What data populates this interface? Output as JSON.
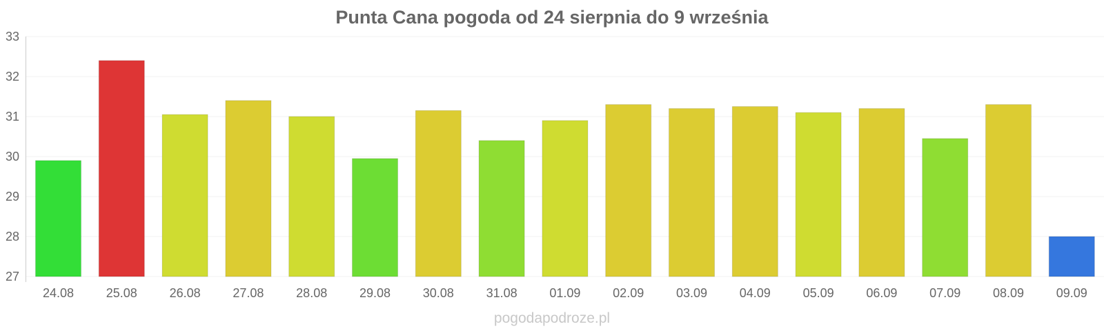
{
  "title": "Punta Cana pogoda od 24 sierpnia do 9 września",
  "footer": "pogodapodroze.pl",
  "chart_data": {
    "type": "bar",
    "title": "Punta Cana pogoda od 24 sierpnia do 9 września",
    "xlabel": "",
    "ylabel": "",
    "ylim": [
      27,
      33
    ],
    "yticks": [
      27,
      28,
      29,
      30,
      31,
      32,
      33
    ],
    "grid": true,
    "legend": "none",
    "categories": [
      "24.08",
      "25.08",
      "26.08",
      "27.08",
      "28.08",
      "29.08",
      "30.08",
      "31.08",
      "01.09",
      "02.09",
      "03.09",
      "04.09",
      "05.09",
      "06.09",
      "07.09",
      "08.09",
      "09.09"
    ],
    "values": [
      29.9,
      32.4,
      31.05,
      31.4,
      31.0,
      29.95,
      31.15,
      30.4,
      30.9,
      31.3,
      31.2,
      31.25,
      31.1,
      31.2,
      30.45,
      31.3,
      28.0
    ],
    "colors": [
      "#33de37",
      "#de3535",
      "#cfdc31",
      "#dccc32",
      "#cfdc31",
      "#6ddd34",
      "#dccc32",
      "#8fdd33",
      "#cfdc31",
      "#dccc32",
      "#dccc32",
      "#dccc32",
      "#cfdc31",
      "#dccc32",
      "#8fdd33",
      "#dccc32",
      "#3577de"
    ]
  }
}
